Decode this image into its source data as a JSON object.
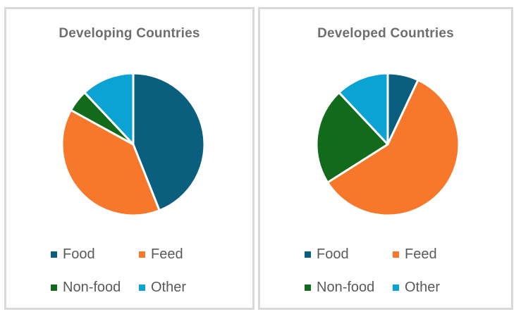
{
  "chart_data": [
    {
      "type": "pie",
      "title": "Developing Countries",
      "categories": [
        "Food",
        "Feed",
        "Non-food",
        "Other"
      ],
      "values": [
        44,
        39,
        5,
        12
      ],
      "legend": "bottom"
    },
    {
      "type": "pie",
      "title": "Developed Countries",
      "categories": [
        "Food",
        "Feed",
        "Non-food",
        "Other"
      ],
      "values": [
        7,
        59,
        22,
        12
      ],
      "legend": "bottom"
    }
  ],
  "colors": {
    "Food": "#0a5f7f",
    "Feed": "#f7782a",
    "Non-food": "#116b1b",
    "Other": "#0ba2d4"
  }
}
